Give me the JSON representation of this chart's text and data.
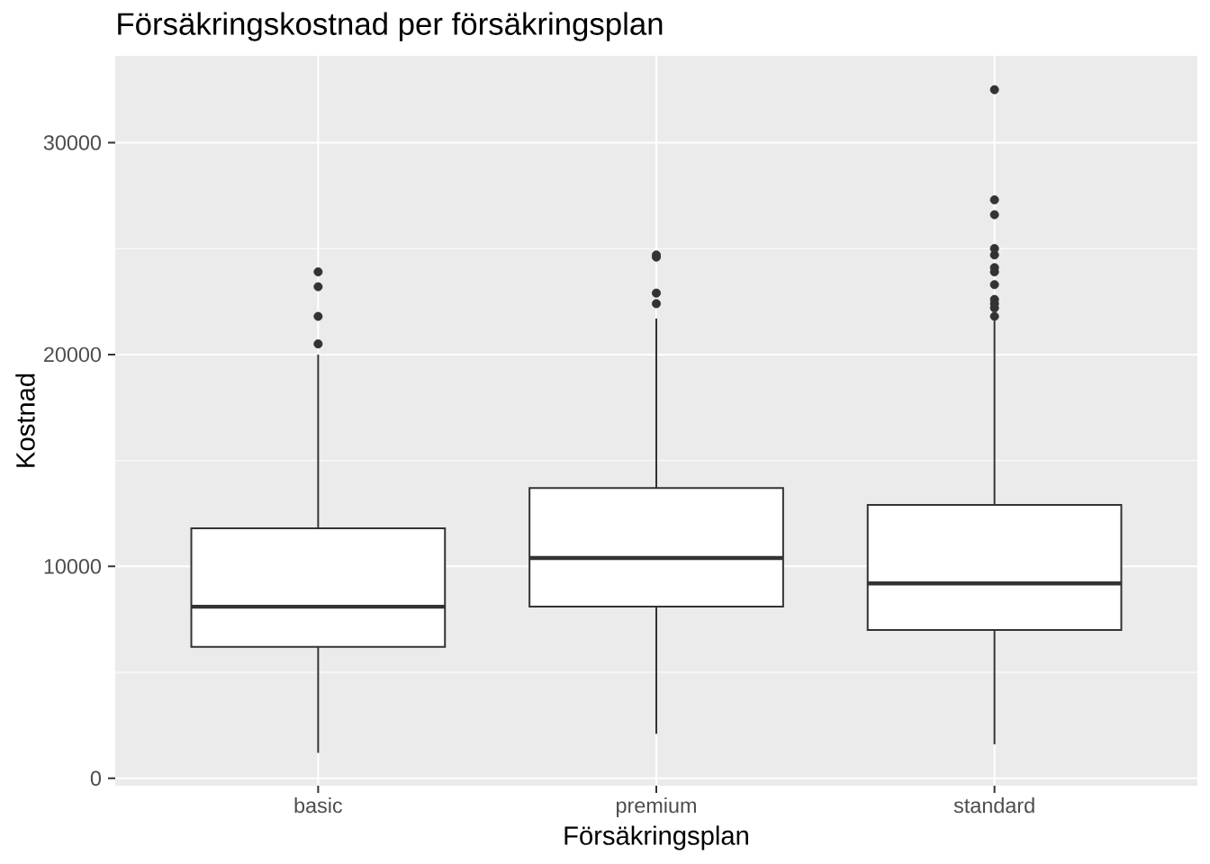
{
  "chart_data": {
    "type": "box",
    "title": "Försäkringskostnad per försäkringsplan",
    "xlabel": "Försäkringsplan",
    "ylabel": "Kostnad",
    "categories": [
      "basic",
      "premium",
      "standard"
    ],
    "boxes": [
      {
        "low": 1200,
        "q1": 6200,
        "median": 8100,
        "q3": 11800,
        "high": 20000,
        "outliers": [
          20500,
          21800,
          23200,
          23900
        ]
      },
      {
        "low": 2100,
        "q1": 8100,
        "median": 10400,
        "q3": 13700,
        "high": 21700,
        "outliers": [
          22400,
          22900,
          24600,
          24700
        ]
      },
      {
        "low": 1600,
        "q1": 7000,
        "median": 9200,
        "q3": 12900,
        "high": 21600,
        "outliers": [
          21800,
          22200,
          22400,
          22600,
          23300,
          23900,
          24100,
          24700,
          25000,
          26600,
          27300,
          32500
        ]
      }
    ],
    "color": "#333333",
    "ylim": [
      -350,
      34100
    ],
    "yticks": [
      0,
      10000,
      20000,
      30000
    ],
    "grid": true
  }
}
